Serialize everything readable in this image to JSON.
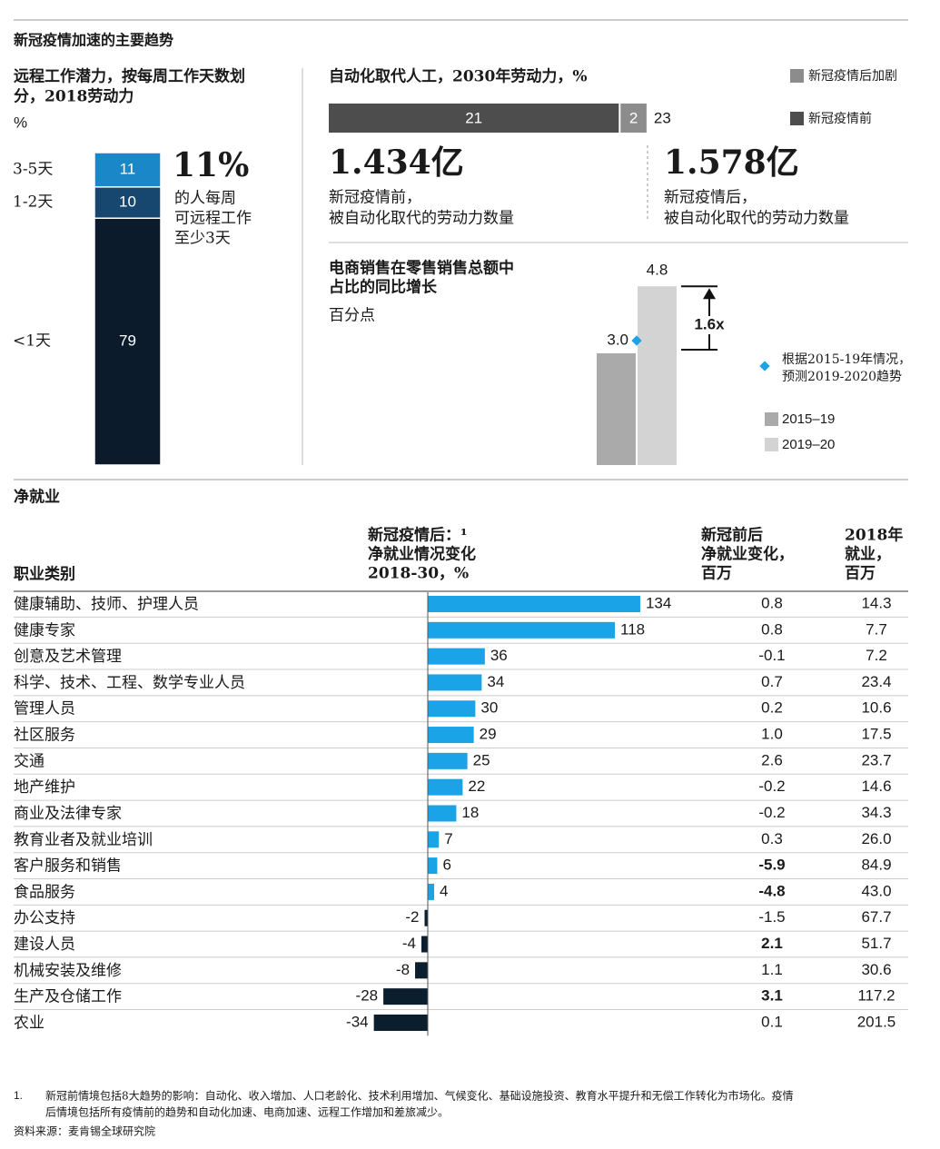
{
  "title": "新冠疫情加速的主要趋势",
  "chart_data": [
    {
      "type": "stacked-column",
      "title": [
        "远程工作潜力，按每周工作天数划",
        "分，2018劳动力"
      ],
      "unit": "%",
      "categories": [
        "3-5天",
        "1-2天",
        "<1天"
      ],
      "values": [
        11,
        10,
        79
      ],
      "colors": [
        "#1a87c9",
        "#17466e",
        "#0b1b2b"
      ],
      "headline": "11%",
      "headline_caption": [
        "的人每周",
        "可远程工作",
        "至少3天"
      ]
    },
    {
      "type": "stacked-hbar",
      "title": "自动化取代人工，2030年劳动力，%",
      "series": [
        {
          "name": "新冠疫情前",
          "color": "#4d4d4d",
          "values": [
            21
          ]
        },
        {
          "name": "新冠疫情后加剧",
          "color": "#8c8c8c",
          "values": [
            2
          ]
        }
      ],
      "total": 23,
      "stats": [
        {
          "value": "1.434亿",
          "caption": [
            "新冠疫情前，",
            "被自动化取代的劳动力数量"
          ]
        },
        {
          "value": "1.578亿",
          "caption": [
            "新冠疫情后，",
            "被自动化取代的劳动力数量"
          ]
        }
      ]
    },
    {
      "type": "column",
      "title": [
        "电商销售在零售销售总额中",
        "占比的同比增长"
      ],
      "unit": "百分点",
      "categories": [
        "2015–19",
        "2019–20"
      ],
      "values": [
        3.0,
        4.8
      ],
      "value_labels": [
        "3.0",
        "4.8"
      ],
      "colors": [
        "#aaaaaa",
        "#d3d3d3"
      ],
      "annotation": "1.6x",
      "projection_note": [
        "根据2015-19年情况，",
        "预测2019-2020趋势"
      ],
      "projection_color": "#1ba3e8"
    },
    {
      "type": "hbar-table",
      "title": "净就业",
      "category_header": "职业类别",
      "value_header": [
        "新冠疫情后：¹",
        "净就业情况变化",
        "2018-30，%"
      ],
      "categories": [
        "健康辅助、技师、护理人员",
        "健康专家",
        "创意及艺术管理",
        "科学、技术、工程、数学专业人员",
        "管理人员",
        "社区服务",
        "交通",
        "地产维护",
        "商业及法律专家",
        "教育业者及就业培训",
        "客户服务和销售",
        "食品服务",
        "办公支持",
        "建设人员",
        "机械安装及维修",
        "生产及仓储工作",
        "农业"
      ],
      "values": [
        134,
        118,
        36,
        34,
        30,
        29,
        25,
        22,
        18,
        7,
        6,
        4,
        -2,
        -4,
        -8,
        -28,
        -34
      ],
      "positive_color": "#1ba3e8",
      "negative_color": "#0a1e2e",
      "columns": [
        {
          "header": [
            "新冠前后",
            "净就业变化，",
            "百万"
          ],
          "values": [
            "0.8",
            "0.8",
            "-0.1",
            "0.7",
            "0.2",
            "1.0",
            "2.6",
            "-0.2",
            "-0.2",
            "0.3",
            "-5.9",
            "-4.8",
            "-1.5",
            "2.1",
            "1.1",
            "3.1",
            "0.1"
          ],
          "bold_rows": [
            10,
            11,
            13,
            15
          ]
        },
        {
          "header": [
            "2018年",
            "就业，",
            "百万"
          ],
          "values": [
            "14.3",
            "7.7",
            "7.2",
            "23.4",
            "10.6",
            "17.5",
            "23.7",
            "14.6",
            "34.3",
            "26.0",
            "84.9",
            "43.0",
            "67.7",
            "51.7",
            "30.6",
            "117.2",
            "201.5"
          ],
          "bold_rows": []
        }
      ]
    }
  ],
  "footnote": {
    "marker": "1.",
    "lines": [
      "新冠前情境包括8大趋势的影响：自动化、收入增加、人口老龄化、技术利用增加、气候变化、基础设施投资、教育水平提升和无偿工作转化为市场化。疫情",
      "后情境包括所有疫情前的趋势和自动化加速、电商加速、远程工作增加和差旅减少。"
    ]
  },
  "source": "资料来源：麦肯锡全球研究院"
}
